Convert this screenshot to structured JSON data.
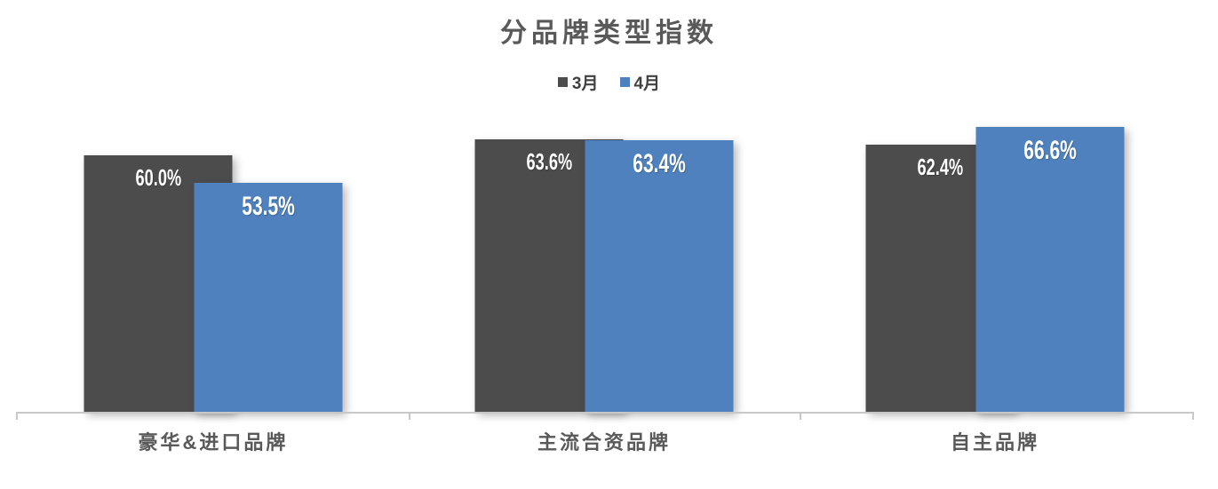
{
  "chart_data": {
    "type": "bar",
    "title": "分品牌类型指数",
    "categories": [
      "豪华&进口品牌",
      "主流合资品牌",
      "自主品牌"
    ],
    "series": [
      {
        "name": "3月",
        "color": "#4C4C4C",
        "values": [
          60.0,
          63.6,
          62.4
        ],
        "labels": [
          "60.0%",
          "63.6%",
          "62.4%"
        ]
      },
      {
        "name": "4月",
        "color": "#4E81BE",
        "values": [
          53.5,
          63.4,
          66.6
        ],
        "labels": [
          "53.5%",
          "63.4%",
          "66.6%"
        ]
      }
    ],
    "xlabel": "",
    "ylabel": "",
    "grid": false,
    "legend_position": "top",
    "value_label_position": "inside-end",
    "value_label_color": "#FFFFFF",
    "title_color": "#595959",
    "category_label_color": "#595959",
    "axis_color": "#C8C8C8",
    "background": "#FFFFFF"
  }
}
